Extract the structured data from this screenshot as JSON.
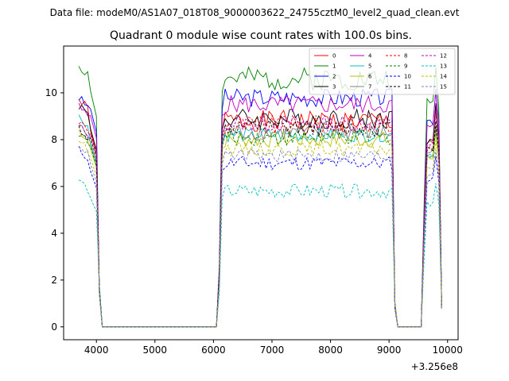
{
  "chart_data": {
    "type": "line",
    "suptitle": "Data file: modeM0/AS1A07_018T08_9000003622_24755cztM0_level2_quad_clean.evt",
    "title": "Quadrant 0 module wise count rates with 100.0s bins.",
    "xlabel": "",
    "ylabel": "",
    "x_offset_label": "+3.256e8",
    "xlim": [
      3440,
      10180
    ],
    "ylim": [
      -0.55,
      12.0
    ],
    "xticks": [
      4000,
      5000,
      6000,
      7000,
      8000,
      9000,
      10000
    ],
    "xtick_labels": [
      "4000",
      "5000",
      "6000",
      "7000",
      "8000",
      "9000",
      "10000"
    ],
    "yticks": [
      0,
      2,
      4,
      6,
      8,
      10
    ],
    "ytick_labels": [
      "0",
      "2",
      "4",
      "6",
      "8",
      "10"
    ],
    "legend_position": "upper right",
    "series": [
      {
        "name": "0",
        "color": "#ff0000",
        "dash": "solid",
        "base": 8.8,
        "start": 9.7,
        "amp": 0.45,
        "seed": 1
      },
      {
        "name": "1",
        "color": "#008000",
        "dash": "solid",
        "base": 10.6,
        "start": 11.2,
        "amp": 0.5,
        "seed": 2
      },
      {
        "name": "2",
        "color": "#0000ff",
        "dash": "solid",
        "base": 9.8,
        "start": 9.8,
        "amp": 0.4,
        "seed": 3
      },
      {
        "name": "3",
        "color": "#000000",
        "dash": "solid",
        "base": 8.9,
        "start": 9.5,
        "amp": 0.45,
        "seed": 4
      },
      {
        "name": "4",
        "color": "#bf00bf",
        "dash": "solid",
        "base": 9.5,
        "start": 9.4,
        "amp": 0.4,
        "seed": 5
      },
      {
        "name": "5",
        "color": "#00bfbf",
        "dash": "solid",
        "base": 8.2,
        "start": 9.0,
        "amp": 0.3,
        "seed": 6
      },
      {
        "name": "6",
        "color": "#bfbf00",
        "dash": "solid",
        "base": 8.0,
        "start": 8.4,
        "amp": 0.35,
        "seed": 7
      },
      {
        "name": "7",
        "color": "#808080",
        "dash": "solid",
        "base": 8.3,
        "start": 8.6,
        "amp": 0.35,
        "seed": 8
      },
      {
        "name": "8",
        "color": "#ff0000",
        "dash": "dashed",
        "base": 8.6,
        "start": 8.8,
        "amp": 0.45,
        "seed": 9
      },
      {
        "name": "9",
        "color": "#008000",
        "dash": "dashed",
        "base": 8.1,
        "start": 8.3,
        "amp": 0.35,
        "seed": 10
      },
      {
        "name": "10",
        "color": "#0000ff",
        "dash": "dashed",
        "base": 7.0,
        "start": 7.6,
        "amp": 0.3,
        "seed": 11
      },
      {
        "name": "11",
        "color": "#000000",
        "dash": "dashed",
        "base": 8.5,
        "start": 8.5,
        "amp": 0.35,
        "seed": 12
      },
      {
        "name": "12",
        "color": "#bf00bf",
        "dash": "dashed",
        "base": 8.7,
        "start": 8.6,
        "amp": 0.35,
        "seed": 13
      },
      {
        "name": "13",
        "color": "#00bfbf",
        "dash": "dashed",
        "base": 5.8,
        "start": 6.3,
        "amp": 0.3,
        "seed": 14
      },
      {
        "name": "14",
        "color": "#bfbf00",
        "dash": "dashed",
        "base": 7.6,
        "start": 8.0,
        "amp": 0.3,
        "seed": 15
      },
      {
        "name": "15",
        "color": "#8080c0",
        "dash": "dashed",
        "base": 7.3,
        "start": 7.8,
        "amp": 0.3,
        "seed": 16
      }
    ]
  }
}
